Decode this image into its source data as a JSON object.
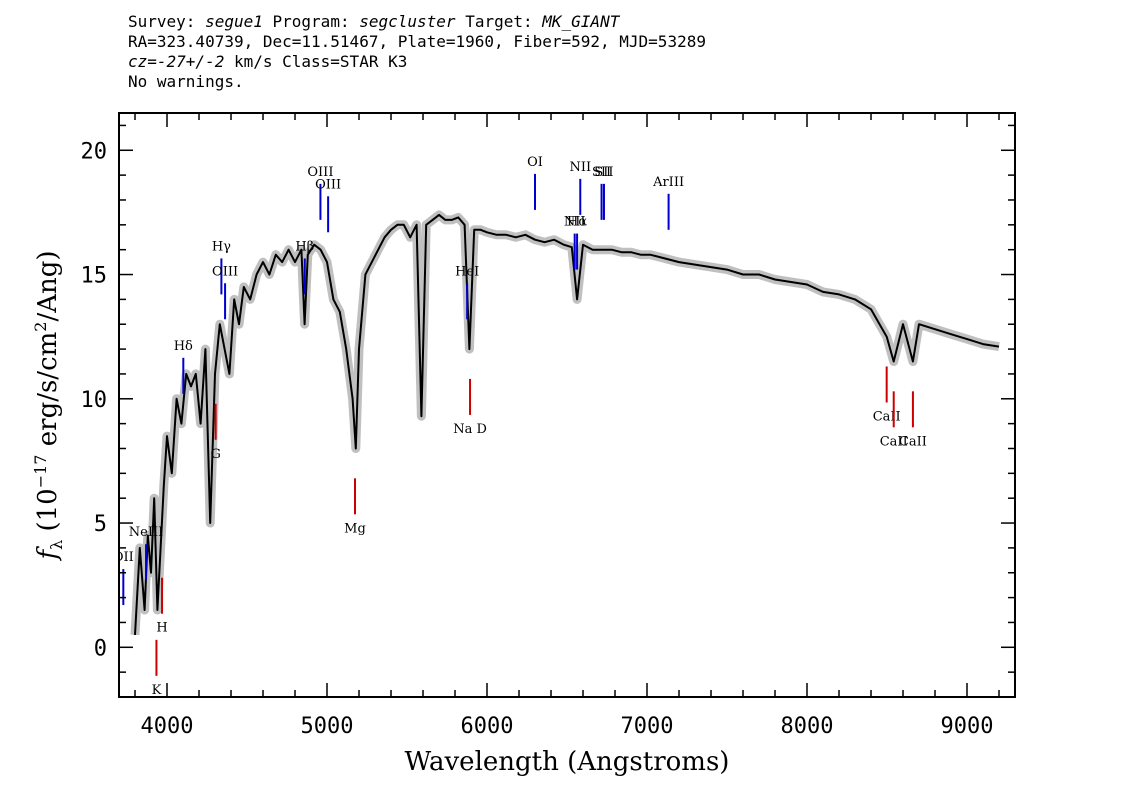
{
  "header": {
    "line1": {
      "survey_label": "Survey:",
      "survey": "segue1",
      "program_label": "Program:",
      "program": "segcluster",
      "target_label": "Target:",
      "target": "MK_GIANT"
    },
    "line2": "RA=323.40739, Dec=11.51467, Plate=1960, Fiber=592, MJD=53289",
    "line3": {
      "cz": "cz=-27+/-2",
      "rest": " km/s Class=STAR K3"
    },
    "line4": "No warnings."
  },
  "colors": {
    "flux": "#000000",
    "error": "#c0c0c0",
    "emission": "#0000cc",
    "absorption": "#cc0000"
  },
  "chart_data": {
    "type": "line",
    "xlabel": "Wavelength (Angstroms)",
    "ylabel": "f_λ (10^-17 erg/s/cm²/Ang)",
    "xlim": [
      3700,
      9300
    ],
    "ylim": [
      -2,
      21.5
    ],
    "xticks": [
      4000,
      5000,
      6000,
      7000,
      8000,
      9000
    ],
    "yticks": [
      0,
      5,
      10,
      15,
      20
    ],
    "grid": false,
    "series": [
      {
        "x": [
          3800,
          3830,
          3860,
          3880,
          3900,
          3920,
          3940,
          3960,
          3980,
          4000,
          4030,
          4060,
          4090,
          4120,
          4150,
          4180,
          4210,
          4240,
          4270,
          4300,
          4330,
          4360,
          4390,
          4420,
          4450,
          4480,
          4520,
          4560,
          4600,
          4640,
          4680,
          4720,
          4760,
          4800,
          4840,
          4860,
          4880,
          4920,
          4960,
          5000,
          5040,
          5080,
          5120,
          5160,
          5180,
          5200,
          5240,
          5280,
          5320,
          5360,
          5400,
          5440,
          5480,
          5520,
          5560,
          5590,
          5620,
          5660,
          5700,
          5740,
          5780,
          5820,
          5860,
          5890,
          5920,
          5960,
          6000,
          6060,
          6120,
          6180,
          6240,
          6300,
          6360,
          6420,
          6480,
          6530,
          6563,
          6600,
          6660,
          6720,
          6780,
          6840,
          6900,
          6960,
          7020,
          7080,
          7140,
          7200,
          7300,
          7400,
          7500,
          7600,
          7700,
          7800,
          7900,
          8000,
          8100,
          8200,
          8300,
          8400,
          8498,
          8542,
          8600,
          8662,
          8700,
          8800,
          8900,
          9000,
          9100,
          9200
        ],
        "y": [
          0.5,
          4,
          1.5,
          4.5,
          3,
          6,
          1.5,
          4,
          6.5,
          8.5,
          7,
          10,
          9,
          11,
          10.5,
          11,
          9,
          12,
          5,
          11,
          13,
          12,
          11,
          14,
          13,
          14.5,
          14,
          15,
          15.5,
          15,
          15.8,
          15.5,
          16,
          15.5,
          16,
          13,
          15.8,
          16.2,
          16,
          15.5,
          14,
          13.5,
          12,
          10,
          8,
          12,
          15,
          15.5,
          16,
          16.5,
          16.8,
          17,
          17,
          16.5,
          17,
          9.3,
          17,
          17.2,
          17.4,
          17.2,
          17.2,
          17.3,
          17,
          12,
          16.8,
          16.8,
          16.7,
          16.6,
          16.6,
          16.5,
          16.6,
          16.4,
          16.3,
          16.4,
          16.2,
          16.1,
          14,
          16.2,
          16,
          16,
          16,
          15.9,
          15.9,
          15.8,
          15.8,
          15.7,
          15.6,
          15.5,
          15.4,
          15.3,
          15.2,
          15,
          15,
          14.8,
          14.7,
          14.6,
          14.3,
          14.2,
          14,
          13.6,
          12.5,
          11.5,
          13,
          11.5,
          13,
          12.8,
          12.6,
          12.4,
          12.2,
          12.1
        ]
      }
    ],
    "lines": [
      {
        "name": "OII",
        "wave": 3727,
        "kind": "emission"
      },
      {
        "name": "NeIII",
        "wave": 3869,
        "kind": "emission"
      },
      {
        "name": "Hδ",
        "wave": 4102,
        "kind": "emission"
      },
      {
        "name": "Hγ",
        "wave": 4340,
        "kind": "emission"
      },
      {
        "name": "OIII",
        "wave": 4363,
        "kind": "emission"
      },
      {
        "name": "Hβ",
        "wave": 4861,
        "kind": "emission"
      },
      {
        "name": "OIII",
        "wave": 4959,
        "kind": "emission"
      },
      {
        "name": "OIII",
        "wave": 5007,
        "kind": "emission"
      },
      {
        "name": "HeI",
        "wave": 5876,
        "kind": "emission"
      },
      {
        "name": "OI",
        "wave": 6300,
        "kind": "emission"
      },
      {
        "name": "NII",
        "wave": 6548,
        "kind": "emission"
      },
      {
        "name": "Hα",
        "wave": 6563,
        "kind": "emission"
      },
      {
        "name": "NII",
        "wave": 6583,
        "kind": "emission"
      },
      {
        "name": "SII",
        "wave": 6716,
        "kind": "emission"
      },
      {
        "name": "SII",
        "wave": 6731,
        "kind": "emission"
      },
      {
        "name": "ArIII",
        "wave": 7135,
        "kind": "emission"
      },
      {
        "name": "K",
        "wave": 3934,
        "kind": "absorption"
      },
      {
        "name": "H",
        "wave": 3969,
        "kind": "absorption"
      },
      {
        "name": "G",
        "wave": 4304,
        "kind": "absorption"
      },
      {
        "name": "Mg",
        "wave": 5175,
        "kind": "absorption"
      },
      {
        "name": "Na D",
        "wave": 5894,
        "kind": "absorption"
      },
      {
        "name": "CaII",
        "wave": 8498,
        "kind": "absorption"
      },
      {
        "name": "CaII",
        "wave": 8542,
        "kind": "absorption"
      },
      {
        "name": "CaII",
        "wave": 8662,
        "kind": "absorption"
      }
    ]
  }
}
